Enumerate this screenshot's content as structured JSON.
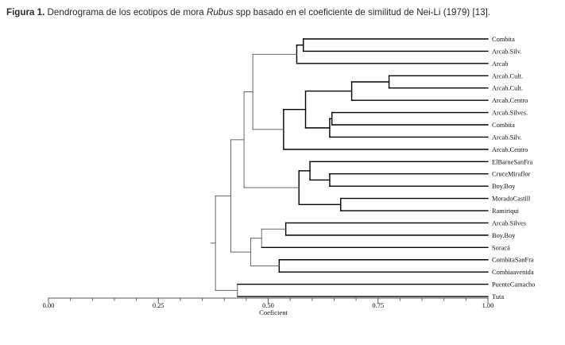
{
  "caption": {
    "label": "Figura 1.",
    "text_before_italic": " Dendrograma de los ecotipos de mora ",
    "italic": "Rubus",
    "text_after_italic": " spp basado en el coeficiente de similitud de Nei-Li (1979) [13]."
  },
  "dendrogram": {
    "axis": {
      "title": "Coeficient",
      "min": 0.0,
      "max": 1.0,
      "ticks": [
        0.0,
        0.25,
        0.5,
        0.75,
        1.0
      ],
      "tick_labels": [
        "0.00",
        "0.25",
        "0.50",
        "0.75",
        "1.00"
      ],
      "minor_step": 0.05
    },
    "leaves": [
      "Combita",
      "Arcab.Silv.",
      "Arcab",
      "Arcab.Cult.",
      "Arcab.Cult.",
      "Arcab.Centro",
      "Arcab.Silves.",
      "Combita",
      "Arcab.Silv.",
      "Arcab.Centro",
      "ElBarneSanFra",
      "CruceMiraflor",
      "Boy.Boy",
      "MoradoCastill",
      "Ramiriqui",
      "Arcab.Silves",
      "Boy.Boy",
      "Soracá",
      "CombitaSanFra",
      "Combiaavenida",
      "PuenteCamacho",
      "Tuta"
    ],
    "merges": [
      {
        "a": "L1",
        "b": "L0",
        "sim": 0.58
      },
      {
        "a": "N0",
        "b": "L2",
        "sim": 0.565
      },
      {
        "a": "L3",
        "b": "L4",
        "sim": 0.775
      },
      {
        "a": "N2",
        "b": "L5",
        "sim": 0.69
      },
      {
        "a": "L6",
        "b": "L7",
        "sim": 0.645
      },
      {
        "a": "N4",
        "b": "L8",
        "sim": 0.64
      },
      {
        "a": "N3",
        "b": "N5",
        "sim": 0.585
      },
      {
        "a": "N6",
        "b": "L9",
        "sim": 0.535
      },
      {
        "a": "N1",
        "b": "N7",
        "sim": 0.465
      },
      {
        "a": "L11",
        "b": "L12",
        "sim": 0.64
      },
      {
        "a": "L10",
        "b": "N9",
        "sim": 0.595
      },
      {
        "a": "L13",
        "b": "L14",
        "sim": 0.665
      },
      {
        "a": "N10",
        "b": "N11",
        "sim": 0.57
      },
      {
        "a": "N8",
        "b": "N12",
        "sim": 0.445
      },
      {
        "a": "L15",
        "b": "L16",
        "sim": 0.54
      },
      {
        "a": "N14",
        "b": "L17",
        "sim": 0.485
      },
      {
        "a": "L18",
        "b": "L19",
        "sim": 0.525
      },
      {
        "a": "N15",
        "b": "N16",
        "sim": 0.46
      },
      {
        "a": "N13",
        "b": "N17",
        "sim": 0.415
      },
      {
        "a": "L20",
        "b": "L21",
        "sim": 0.43
      },
      {
        "a": "N18",
        "b": "N19",
        "sim": 0.38
      }
    ]
  }
}
